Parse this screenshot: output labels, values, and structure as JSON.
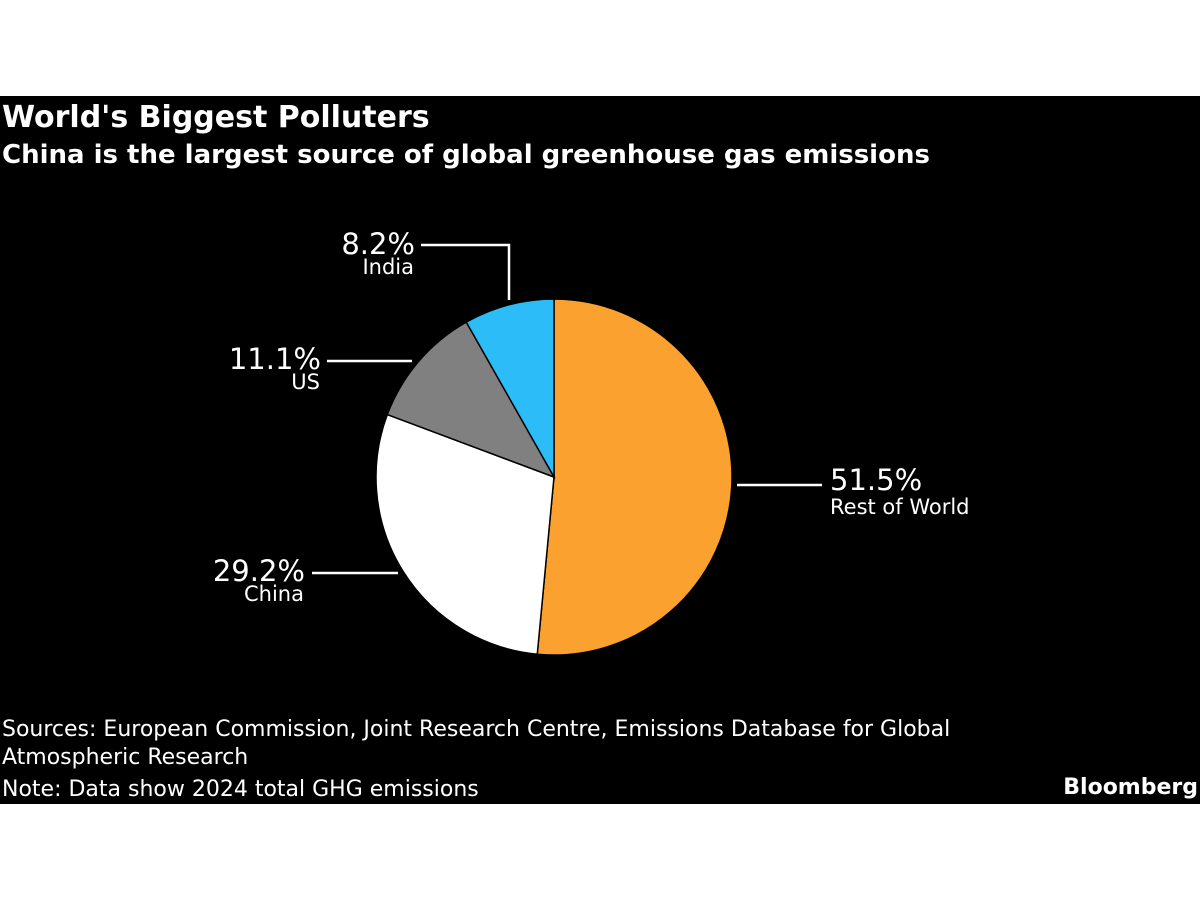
{
  "header": {
    "title": "World's Biggest Polluters",
    "subtitle": "China is the largest source of global greenhouse gas emissions"
  },
  "chart_data": {
    "type": "pie",
    "start_angle_deg": 0,
    "direction": "clockwise",
    "slices": [
      {
        "label": "Rest of World",
        "value": 51.5,
        "value_label": "51.5%",
        "color": "#fba130"
      },
      {
        "label": "China",
        "value": 29.2,
        "value_label": "29.2%",
        "color": "#ffffff"
      },
      {
        "label": "US",
        "value": 11.1,
        "value_label": "11.1%",
        "color": "#808080"
      },
      {
        "label": "India",
        "value": 8.2,
        "value_label": "8.2%",
        "color": "#2cbdf8"
      }
    ]
  },
  "footer": {
    "sources": "Sources: European Commission, Joint Research Centre, Emissions Database for Global Atmospheric Research",
    "note": "Note: Data show 2024 total GHG emissions",
    "brand": "Bloomberg"
  }
}
